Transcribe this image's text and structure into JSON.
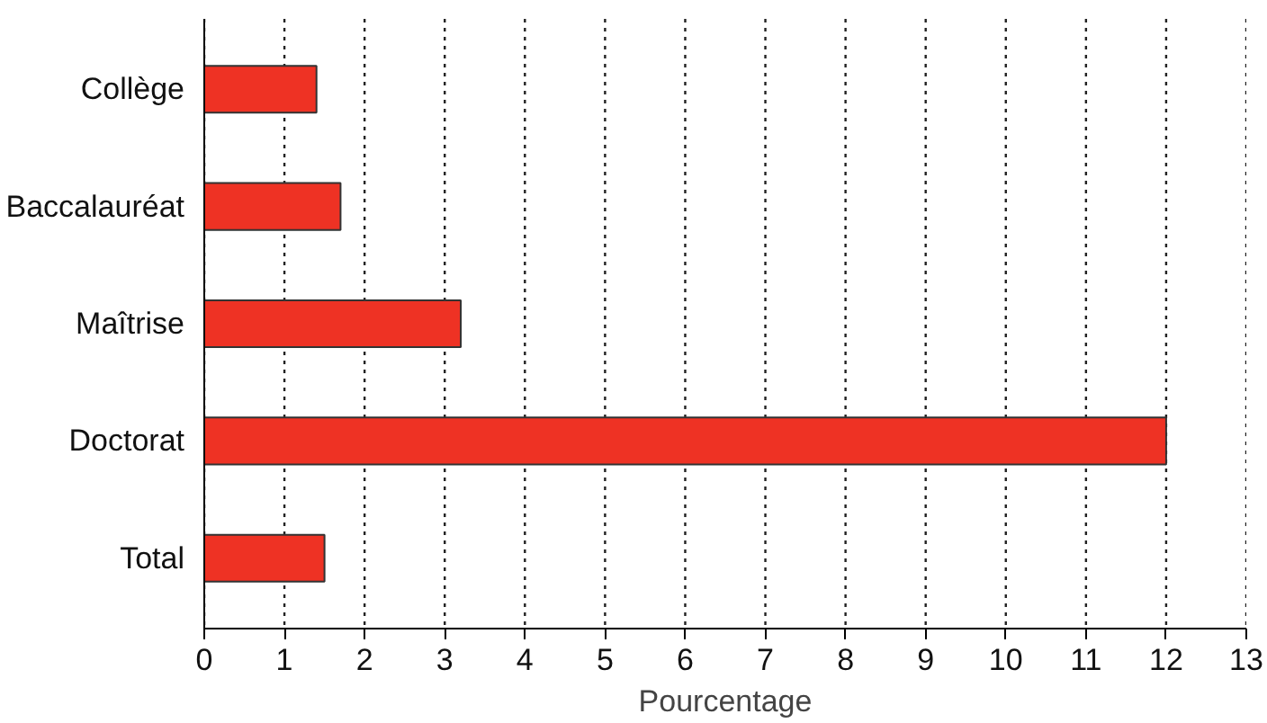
{
  "chart_data": {
    "type": "bar",
    "orientation": "horizontal",
    "xlabel": "Pourcentage",
    "categories": [
      "Collège",
      "Baccalauréat",
      "Maîtrise",
      "Doctorat",
      "Total"
    ],
    "values": [
      1.4,
      1.7,
      3.2,
      12.0,
      1.5
    ],
    "color": "#ee3224",
    "xlim": [
      0,
      13
    ],
    "xticks": [
      0,
      1,
      2,
      3,
      4,
      5,
      6,
      7,
      8,
      9,
      10,
      11,
      12,
      13
    ],
    "grid": "x"
  }
}
